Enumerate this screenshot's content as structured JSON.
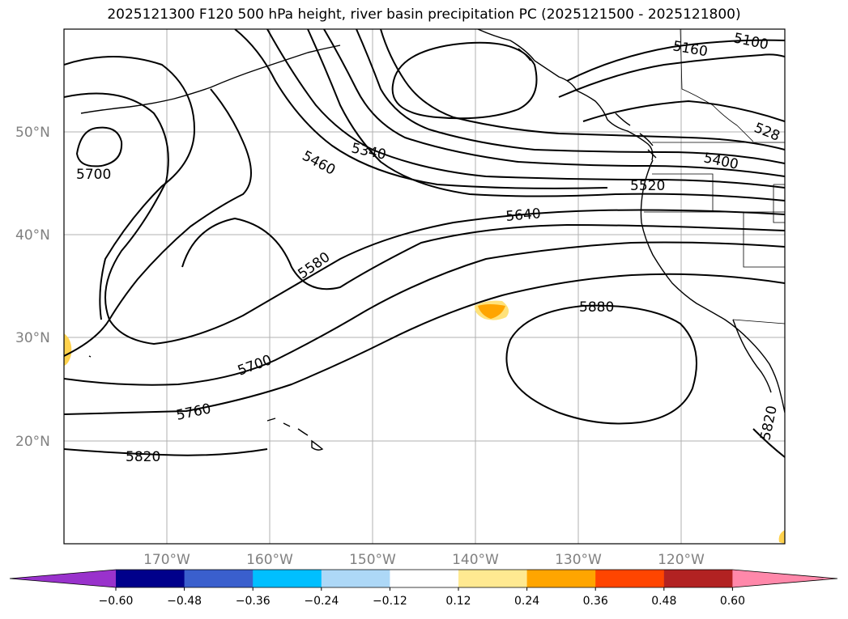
{
  "title": "2025121300 F120 500 hPa height, river basin precipitation PC (2025121500 - 2025121800)",
  "map": {
    "lat_labels": [
      "50°N",
      "40°N",
      "30°N",
      "20°N"
    ],
    "lon_labels": [
      "170°W",
      "160°W",
      "150°W",
      "140°W",
      "130°W",
      "120°W"
    ],
    "contour_labels": [
      "5700",
      "5460",
      "5340",
      "5160",
      "5100",
      "528",
      "5400",
      "5520",
      "5640",
      "5580",
      "5880",
      "5700",
      "5760",
      "5820",
      "5820"
    ],
    "gridline_color": "#b0b0b0",
    "contour_color": "#000000"
  },
  "colorbar": {
    "tick_labels": [
      "−0.60",
      "−0.48",
      "−0.36",
      "−0.24",
      "−0.12",
      "0.12",
      "0.24",
      "0.36",
      "0.48",
      "0.60"
    ],
    "colors": [
      "#9932cc",
      "#00008b",
      "#3a5fcd",
      "#00bfff",
      "#add8f7",
      "#ffffff",
      "#ffe991",
      "#ffa500",
      "#ff4500",
      "#b22222",
      "#ff88aa"
    ]
  }
}
